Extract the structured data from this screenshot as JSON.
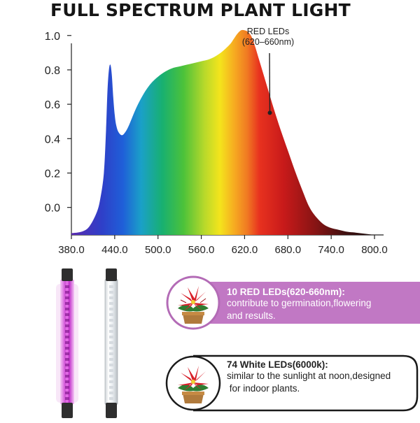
{
  "title": "FULL SPECTRUM PLANT LIGHT",
  "chart_data": {
    "type": "area",
    "title": "FULL SPECTRUM PLANT LIGHT",
    "xlabel": "",
    "ylabel": "",
    "xlim": [
      380,
      800
    ],
    "ylim": [
      -0.16,
      1.06
    ],
    "x_ticks": [
      "380.0",
      "440.0",
      "500.0",
      "560.0",
      "620.0",
      "680.0",
      "740.0",
      "800.0"
    ],
    "y_ticks": [
      "1.0",
      "0.8",
      "0.6",
      "0.4",
      "0.2",
      "0.0"
    ],
    "series": [
      {
        "x": [
          380,
          395,
          405,
          415,
          420,
          425,
          428,
          430,
          432,
          434,
          436,
          438,
          440,
          442,
          445,
          450,
          455,
          460,
          470,
          480,
          490,
          500,
          510,
          520,
          530,
          540,
          550,
          560,
          570,
          580,
          590,
          600,
          605,
          610,
          615,
          620,
          625,
          630,
          635,
          640,
          650,
          660,
          670,
          680,
          690,
          700,
          710,
          720,
          730,
          740,
          750,
          760,
          770,
          780,
          790,
          800
        ],
        "y": [
          -0.15,
          -0.14,
          -0.11,
          -0.03,
          0.05,
          0.2,
          0.45,
          0.68,
          0.8,
          0.83,
          0.77,
          0.64,
          0.54,
          0.48,
          0.44,
          0.42,
          0.44,
          0.48,
          0.58,
          0.66,
          0.72,
          0.76,
          0.79,
          0.81,
          0.82,
          0.83,
          0.84,
          0.85,
          0.86,
          0.88,
          0.91,
          0.95,
          0.98,
          1.01,
          1.03,
          1.03,
          1.02,
          0.99,
          0.93,
          0.86,
          0.72,
          0.58,
          0.45,
          0.33,
          0.21,
          0.1,
          0.0,
          -0.06,
          -0.1,
          -0.12,
          -0.13,
          -0.14,
          -0.145,
          -0.15,
          -0.155,
          -0.16
        ]
      }
    ],
    "annotation": {
      "line1": "RED LEDs",
      "line2": "(620–660nm)",
      "x": 655,
      "y": 0.55
    }
  },
  "colors": {
    "red_card": "#c178c4",
    "white_card_border": "#1a1a1a"
  },
  "cards": [
    {
      "heading": "10 RED LEDs(620-660nm):",
      "lines": [
        "contribute to germination,flowering",
        "and results."
      ],
      "icon": "poinsettia-plant-icon"
    },
    {
      "heading": "74 White LEDs(6000k):",
      "lines": [
        "similar to the sunlight at noon,designed",
        " for indoor plants."
      ],
      "icon": "poinsettia-plant-icon"
    }
  ],
  "led_bars": [
    {
      "name": "purple-led-bar",
      "color": "#c02fc9"
    },
    {
      "name": "white-led-bar",
      "color": "#ffffff"
    }
  ]
}
